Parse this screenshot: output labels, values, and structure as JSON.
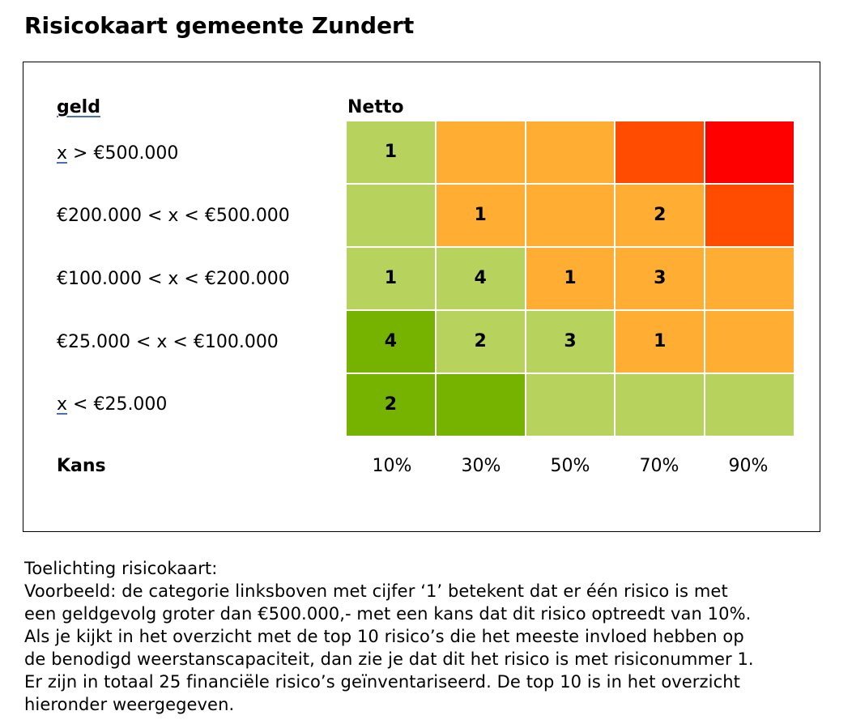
{
  "title": "Risicokaart gemeente Zundert",
  "matrix": {
    "row_header": "geld",
    "col_header": "Netto",
    "row_labels": [
      {
        "var": "x",
        "text": " > €500.000"
      },
      {
        "var": "",
        "text": "€200.000 < x < €500.000"
      },
      {
        "var": "",
        "text": "€100.000 < x < €200.000"
      },
      {
        "var": "",
        "text": "€25.000 < x < €100.000"
      },
      {
        "var": "x",
        "text": " < €25.000"
      }
    ],
    "x_axis_label": "Kans",
    "x_ticks": [
      "10%",
      "30%",
      "50%",
      "70%",
      "90%"
    ],
    "colors": {
      "dark_green": "#76b300",
      "light_green": "#b8d35d",
      "orange": "#ffad33",
      "dark_orange": "#ff4c00",
      "red": "#ff0000"
    },
    "cells": [
      [
        {
          "value": "1",
          "color": "#b8d35d"
        },
        {
          "value": "",
          "color": "#ffad33"
        },
        {
          "value": "",
          "color": "#ffad33"
        },
        {
          "value": "",
          "color": "#ff4c00"
        },
        {
          "value": "",
          "color": "#ff0000"
        }
      ],
      [
        {
          "value": "",
          "color": "#b8d35d"
        },
        {
          "value": "1",
          "color": "#ffad33"
        },
        {
          "value": "",
          "color": "#ffad33"
        },
        {
          "value": "2",
          "color": "#ffad33"
        },
        {
          "value": "",
          "color": "#ff4c00"
        }
      ],
      [
        {
          "value": "1",
          "color": "#b8d35d"
        },
        {
          "value": "4",
          "color": "#b8d35d"
        },
        {
          "value": "1",
          "color": "#ffad33"
        },
        {
          "value": "3",
          "color": "#ffad33"
        },
        {
          "value": "",
          "color": "#ffad33"
        }
      ],
      [
        {
          "value": "4",
          "color": "#76b300"
        },
        {
          "value": "2",
          "color": "#b8d35d"
        },
        {
          "value": "3",
          "color": "#b8d35d"
        },
        {
          "value": "1",
          "color": "#ffad33"
        },
        {
          "value": "",
          "color": "#ffad33"
        }
      ],
      [
        {
          "value": "2",
          "color": "#76b300"
        },
        {
          "value": "",
          "color": "#76b300"
        },
        {
          "value": "",
          "color": "#b8d35d"
        },
        {
          "value": "",
          "color": "#b8d35d"
        },
        {
          "value": "",
          "color": "#b8d35d"
        }
      ]
    ]
  },
  "explanation": {
    "heading": "Toelichting risicokaart:",
    "lines": [
      "Voorbeeld: de categorie linksboven met cijfer ‘1’ betekent dat er één risico is met",
      "een geldgevolg groter dan €500.000,- met een kans dat dit risico optreedt van 10%.",
      "Als je kijkt in het overzicht met de top 10 risico’s die het meeste invloed hebben op",
      "de benodigd weerstanscapaciteit, dan zie je dat dit het risico is met risiconummer 1.",
      "Er zijn in totaal 25 financiële risico’s geïnventariseerd. De top 10 is in het overzicht",
      "hieronder weergegeven."
    ]
  }
}
